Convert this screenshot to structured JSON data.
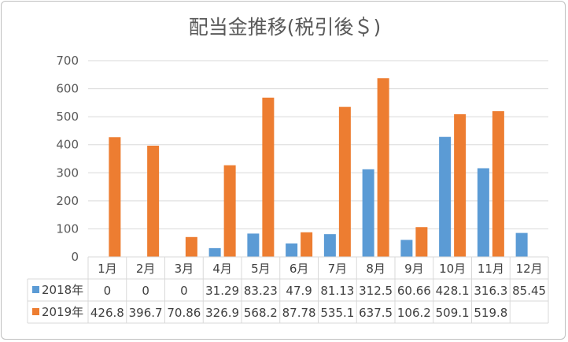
{
  "chart_data": {
    "type": "bar",
    "title": "配当金推移(税引後＄)",
    "categories": [
      "1月",
      "2月",
      "3月",
      "4月",
      "5月",
      "6月",
      "7月",
      "8月",
      "9月",
      "10月",
      "11月",
      "12月"
    ],
    "yticks": [
      0,
      100,
      200,
      300,
      400,
      500,
      600,
      700
    ],
    "ylim": [
      0,
      700
    ],
    "grid": true,
    "legend": "data-table",
    "series": [
      {
        "name": "2018年",
        "color": "#5b9bd5",
        "values": [
          0,
          0,
          0,
          31.29,
          83.23,
          47.9,
          81.13,
          312.5,
          60.66,
          428.1,
          316.3,
          85.45
        ],
        "labels": [
          "0",
          "0",
          "0",
          "31.29",
          "83.23",
          "47.9",
          "81.13",
          "312.5",
          "60.66",
          "428.1",
          "316.3",
          "85.45"
        ]
      },
      {
        "name": "2019年",
        "color": "#ed7d31",
        "values": [
          426.8,
          396.7,
          70.86,
          326.9,
          568.2,
          87.78,
          535.1,
          637.5,
          106.2,
          509.1,
          519.8,
          null
        ],
        "labels": [
          "426.8",
          "396.7",
          "70.86",
          "326.9",
          "568.2",
          "87.78",
          "535.1",
          "637.5",
          "106.2",
          "509.1",
          "519.8",
          ""
        ]
      }
    ]
  }
}
